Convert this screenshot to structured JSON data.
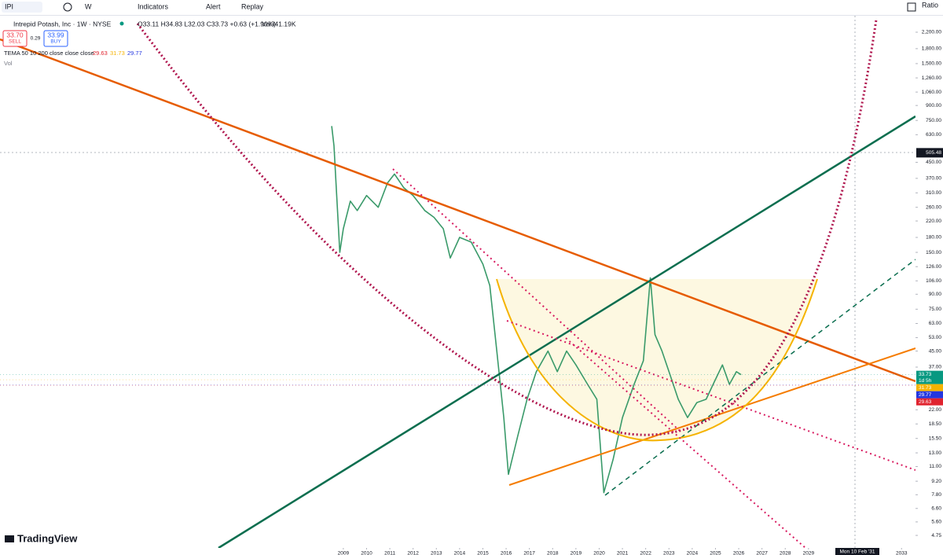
{
  "toolbar": {
    "symbol": "IPI",
    "interval": "W",
    "indicators": "Indicators",
    "alert": "Alert",
    "replay": "Replay",
    "ratio": "Ratio"
  },
  "legend": {
    "title": "Intrepid Potash, Inc · 1W · NYSE",
    "ohlc": "O33.11 H34.83 L32.03 C33.73 +0.63 (+1.90%)",
    "volume": "Vol341.19K",
    "sell_price": "33.70",
    "sell": "SELL",
    "spread": "0.29",
    "buy_price": "33.99",
    "buy": "BUY",
    "tema": "TEMA 50 10 200 close close close",
    "tema_values": [
      "29.63",
      "31.73",
      "29.77"
    ],
    "vol_label": "Vol"
  },
  "branding": "TradingView",
  "chart_data": {
    "type": "line",
    "log_scale": true,
    "color": "#3a9a6a",
    "x": [
      2008.5,
      2008.6,
      2008.85,
      2009.0,
      2009.3,
      2009.6,
      2010.0,
      2010.5,
      2010.9,
      2011.2,
      2011.6,
      2012.0,
      2012.5,
      2012.9,
      2013.3,
      2013.6,
      2014.0,
      2014.5,
      2015.0,
      2015.3,
      2015.6,
      2015.9,
      2016.1,
      2016.5,
      2016.9,
      2017.3,
      2017.8,
      2018.2,
      2018.6,
      2019.0,
      2019.5,
      2019.9,
      2020.2,
      2020.6,
      2021.0,
      2021.5,
      2021.9,
      2022.2,
      2022.4,
      2022.7,
      2023.0,
      2023.4,
      2023.8,
      2024.2,
      2024.6,
      2024.9,
      2025.3,
      2025.6,
      2025.9,
      2026.1
    ],
    "values": [
      700,
      550,
      150,
      200,
      280,
      250,
      300,
      260,
      350,
      390,
      330,
      300,
      250,
      230,
      200,
      140,
      180,
      170,
      130,
      100,
      45,
      20,
      10,
      16,
      25,
      35,
      45,
      35,
      45,
      38,
      30,
      25,
      8,
      12,
      20,
      30,
      40,
      110,
      55,
      45,
      35,
      25,
      20,
      24,
      25,
      30,
      38,
      30,
      35,
      33.73
    ],
    "xlim": [
      1994.24,
      2033.6
    ],
    "ylim": [
      3.74,
      2690
    ],
    "xticks": [
      2009,
      2010,
      2011,
      2012,
      2013,
      2014,
      2015,
      2016,
      2017,
      2018,
      2019,
      2020,
      2021,
      2022,
      2023,
      2024,
      2025,
      2026,
      2027,
      2028,
      2029,
      2033
    ],
    "yticks": [
      {
        "value": 2200,
        "label": "2,200.00"
      },
      {
        "value": 1800,
        "label": "1,800.00"
      },
      {
        "value": 1500,
        "label": "1,500.00"
      },
      {
        "value": 1260,
        "label": "1,260.00"
      },
      {
        "value": 1060,
        "label": "1,060.00"
      },
      {
        "value": 900,
        "label": "900.00"
      },
      {
        "value": 750,
        "label": "750.00"
      },
      {
        "value": 630,
        "label": "630.00"
      },
      {
        "value": 450,
        "label": "450.00"
      },
      {
        "value": 370,
        "label": "370.00"
      },
      {
        "value": 310,
        "label": "310.00"
      },
      {
        "value": 260,
        "label": "260.00"
      },
      {
        "value": 220,
        "label": "220.00"
      },
      {
        "value": 180,
        "label": "180.00"
      },
      {
        "value": 150,
        "label": "150.00"
      },
      {
        "value": 126,
        "label": "126.00"
      },
      {
        "value": 106,
        "label": "106.00"
      },
      {
        "value": 90,
        "label": "90.00"
      },
      {
        "value": 75,
        "label": "75.00"
      },
      {
        "value": 63,
        "label": "63.00"
      },
      {
        "value": 53,
        "label": "53.00"
      },
      {
        "value": 45,
        "label": "45.00"
      },
      {
        "value": 37,
        "label": "37.00"
      },
      {
        "value": 22,
        "label": "22.00"
      },
      {
        "value": 18.5,
        "label": "18.50"
      },
      {
        "value": 15.5,
        "label": "15.50"
      },
      {
        "value": 13,
        "label": "13.00"
      },
      {
        "value": 11,
        "label": "11.00"
      },
      {
        "value": 9.2,
        "label": "9.20"
      },
      {
        "value": 7.8,
        "label": "7.80"
      },
      {
        "value": 6.6,
        "label": "6.60"
      },
      {
        "value": 5.6,
        "label": "5.60"
      },
      {
        "value": 4.75,
        "label": "4.75"
      }
    ],
    "crosshair": {
      "y": 505.48,
      "x_label": "Mon 10 Feb '31",
      "x": 2031.1
    },
    "countdown": "1d 5h",
    "price_badges": [
      {
        "value": 33.73,
        "color": "#089981"
      },
      {
        "value": 31.73,
        "color": "#f5b300"
      },
      {
        "value": 29.77,
        "color": "#2336e0"
      },
      {
        "value": 29.63,
        "color": "#e0232e"
      }
    ]
  }
}
